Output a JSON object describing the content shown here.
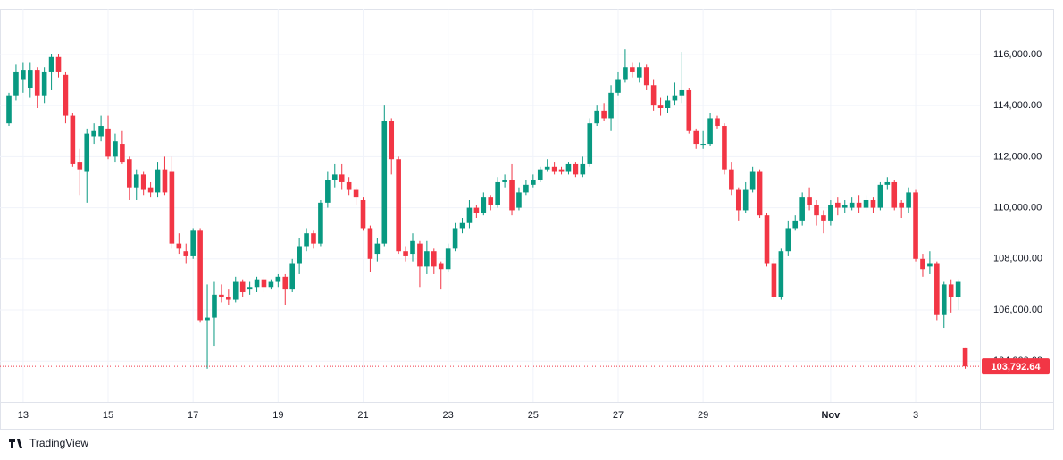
{
  "chart_data": {
    "type": "candlestick",
    "brand": "TradingView",
    "up_color": "#089981",
    "down_color": "#f23645",
    "grid": true,
    "price_label": "103,792.64",
    "ylim": [
      102400,
      117780
    ],
    "yticks": [
      {
        "value": 104000,
        "label": "104,000.00"
      },
      {
        "value": 106000,
        "label": "106,000.00"
      },
      {
        "value": 108000,
        "label": "108,000.00"
      },
      {
        "value": 110000,
        "label": "110,000.00"
      },
      {
        "value": 112000,
        "label": "112,000.00"
      },
      {
        "value": 114000,
        "label": "114,000.00"
      },
      {
        "value": 116000,
        "label": "116,000.00"
      }
    ],
    "categories": [
      null,
      null,
      "13",
      null,
      null,
      null,
      null,
      null,
      null,
      null,
      null,
      null,
      null,
      null,
      "15",
      null,
      null,
      null,
      null,
      null,
      null,
      null,
      null,
      null,
      null,
      null,
      "17",
      null,
      null,
      null,
      null,
      null,
      null,
      null,
      null,
      null,
      null,
      null,
      "19",
      null,
      null,
      null,
      null,
      null,
      null,
      null,
      null,
      null,
      null,
      null,
      "21",
      null,
      null,
      null,
      null,
      null,
      null,
      null,
      null,
      null,
      null,
      null,
      "23",
      null,
      null,
      null,
      null,
      null,
      null,
      null,
      null,
      null,
      null,
      null,
      "25",
      null,
      null,
      null,
      null,
      null,
      null,
      null,
      null,
      null,
      null,
      null,
      "27",
      null,
      null,
      null,
      null,
      null,
      null,
      null,
      null,
      null,
      null,
      null,
      "29",
      null,
      null,
      null,
      null,
      null,
      null,
      null,
      null,
      null,
      null,
      null,
      null,
      null,
      null,
      null,
      null,
      null,
      "Nov",
      null,
      null,
      null,
      null,
      null,
      null,
      null,
      null,
      null,
      null,
      null,
      "3",
      null,
      null,
      null,
      null,
      null,
      null,
      null
    ],
    "open": [
      113300,
      114400,
      115000,
      114700,
      115400,
      114400,
      115300,
      115900,
      115200,
      113600,
      111800,
      111400,
      112800,
      112800,
      113100,
      112000,
      112500,
      111900,
      110800,
      111300,
      110800,
      110600,
      111500,
      111400,
      108600,
      108300,
      108100,
      109100,
      105600,
      105700,
      106600,
      106500,
      106400,
      107100,
      106800,
      106900,
      107200,
      106900,
      107100,
      107300,
      106800,
      107800,
      108500,
      109000,
      108600,
      110200,
      111100,
      111300,
      111000,
      110700,
      110300,
      109200,
      108200,
      108600,
      113400,
      111900,
      108300,
      108200,
      108600,
      107700,
      108300,
      107800,
      107600,
      108400,
      109200,
      109400,
      110000,
      109800,
      110400,
      110100,
      111000,
      111100,
      110000,
      110600,
      110900,
      111100,
      111500,
      111600,
      111500,
      111400,
      111700,
      111300,
      111700,
      113300,
      113800,
      113500,
      114500,
      115000,
      115500,
      115100,
      115500,
      114800,
      114000,
      113900,
      114200,
      114400,
      114600,
      113000,
      112500,
      112500,
      113500,
      113200,
      111500,
      110700,
      109900,
      110700,
      111400,
      109700,
      107800,
      106500,
      108300,
      109200,
      109500,
      110400,
      110100,
      109700,
      109500,
      110200,
      110000,
      110000,
      110200,
      110000,
      110300,
      110000,
      110900,
      111000,
      110200,
      110000,
      110600,
      108000,
      107700,
      107800,
      105800,
      107000,
      106500,
      104500
    ],
    "high": [
      114500,
      115600,
      115700,
      115700,
      115500,
      115500,
      116000,
      116000,
      115300,
      113700,
      112300,
      113100,
      113300,
      113600,
      113600,
      112900,
      113000,
      112000,
      111500,
      111400,
      111000,
      111800,
      112000,
      112000,
      109000,
      108600,
      109200,
      109200,
      107000,
      107100,
      107000,
      106800,
      107300,
      107200,
      107100,
      107300,
      107300,
      107200,
      107400,
      107400,
      108000,
      108800,
      109200,
      109100,
      110300,
      111400,
      111700,
      111700,
      111200,
      110800,
      110400,
      109300,
      108800,
      114000,
      113500,
      112000,
      108500,
      109000,
      108700,
      108700,
      108400,
      107900,
      108600,
      109400,
      109600,
      110300,
      110100,
      110600,
      110500,
      111200,
      111300,
      111700,
      110800,
      111100,
      111300,
      111600,
      111900,
      111800,
      111600,
      111800,
      111800,
      112000,
      113500,
      114000,
      114100,
      114800,
      115300,
      116200,
      115700,
      115700,
      115600,
      115000,
      114300,
      114400,
      114900,
      116100,
      114700,
      113100,
      113000,
      113700,
      113600,
      113300,
      111800,
      110800,
      111000,
      111600,
      111500,
      109800,
      108000,
      108400,
      109500,
      109700,
      110600,
      110800,
      110300,
      109900,
      110300,
      110400,
      110300,
      110400,
      110500,
      110500,
      110400,
      111000,
      111200,
      111100,
      110300,
      110800,
      110700,
      108200,
      108300,
      107900,
      107100,
      107200,
      107200,
      104500
    ],
    "low": [
      113200,
      114200,
      114500,
      114300,
      113900,
      114100,
      114600,
      115100,
      113300,
      111600,
      110500,
      110200,
      112500,
      112600,
      111900,
      111800,
      111700,
      110300,
      110300,
      110500,
      110400,
      110400,
      110500,
      108400,
      108200,
      107800,
      108000,
      105500,
      103700,
      104600,
      106300,
      106200,
      106300,
      106500,
      106600,
      106700,
      106700,
      106800,
      106900,
      106200,
      106700,
      107400,
      108300,
      108400,
      108500,
      110000,
      110800,
      110700,
      110500,
      110100,
      109100,
      107500,
      107900,
      108500,
      111300,
      108200,
      107900,
      107900,
      106900,
      107400,
      107400,
      106800,
      107500,
      108300,
      109000,
      109200,
      109600,
      109700,
      109900,
      110000,
      110800,
      109700,
      109900,
      110500,
      110800,
      111000,
      111400,
      111300,
      111300,
      111300,
      111200,
      111200,
      111600,
      113200,
      113400,
      113000,
      114400,
      114900,
      115100,
      114900,
      114600,
      113800,
      113600,
      113700,
      114000,
      114100,
      112900,
      112300,
      112300,
      112400,
      113100,
      111300,
      110500,
      109500,
      109800,
      110600,
      109600,
      107700,
      106400,
      106400,
      108100,
      109100,
      109300,
      109900,
      109300,
      109000,
      109300,
      109700,
      109800,
      109900,
      109800,
      109900,
      109800,
      109900,
      110700,
      109900,
      109600,
      109800,
      107900,
      107300,
      107400,
      105600,
      105300,
      105900,
      106000,
      103700
    ],
    "close": [
      114400,
      115300,
      115400,
      115400,
      114400,
      115300,
      115900,
      115300,
      113600,
      111700,
      111500,
      112900,
      113000,
      113200,
      112000,
      112600,
      111800,
      110800,
      111300,
      110700,
      110600,
      111500,
      110600,
      108600,
      108400,
      108100,
      109100,
      105600,
      105700,
      106600,
      106500,
      106400,
      107100,
      106700,
      106900,
      107200,
      106900,
      107100,
      107300,
      106800,
      107800,
      108500,
      109000,
      108600,
      110200,
      111100,
      111300,
      111000,
      110700,
      110400,
      109200,
      108000,
      108600,
      113400,
      111900,
      108300,
      108100,
      108700,
      107700,
      108300,
      107700,
      107600,
      108400,
      109200,
      109400,
      110000,
      109800,
      110400,
      110100,
      111000,
      111100,
      109900,
      110600,
      110900,
      111100,
      111500,
      111600,
      111400,
      111400,
      111700,
      111300,
      111700,
      113300,
      113800,
      113500,
      114500,
      115000,
      115500,
      115300,
      115500,
      114800,
      114000,
      113900,
      114200,
      114400,
      114600,
      113000,
      112500,
      112500,
      113500,
      113200,
      111500,
      110700,
      109900,
      110700,
      111400,
      109700,
      107800,
      106500,
      108300,
      109200,
      109500,
      110400,
      110100,
      109700,
      109500,
      110100,
      110000,
      110100,
      110200,
      110000,
      110300,
      110000,
      110900,
      111000,
      110000,
      110000,
      110600,
      108000,
      107600,
      107800,
      105800,
      107000,
      106500,
      107100,
      103792.64
    ]
  }
}
